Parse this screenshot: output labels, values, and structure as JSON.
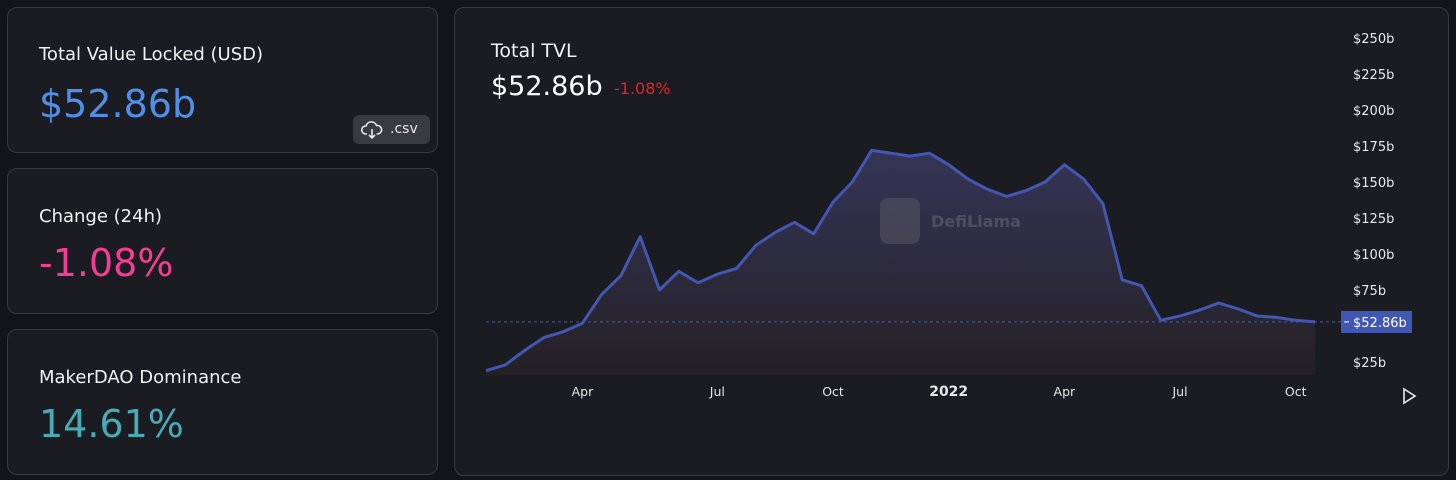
{
  "cards": [
    {
      "title": "Total Value Locked (USD)",
      "value": "$52.86b",
      "button": ".csv"
    },
    {
      "title": "Change (24h)",
      "value": "-1.08%"
    },
    {
      "title": "MakerDAO Dominance",
      "value": "14.61%"
    }
  ],
  "chart_data": {
    "type": "line",
    "title": "Total TVL",
    "headline_value": "$52.86b",
    "headline_change": "-1.08%",
    "watermark": "DefiLlama",
    "categories": [
      null,
      null,
      null,
      null,
      null,
      "Apr",
      null,
      null,
      null,
      null,
      null,
      null,
      "Jul",
      null,
      null,
      null,
      null,
      null,
      "Oct",
      null,
      null,
      null,
      null,
      null,
      "2022",
      null,
      null,
      null,
      null,
      null,
      "Apr",
      null,
      null,
      null,
      null,
      null,
      "Jul",
      null,
      null,
      null,
      null,
      null,
      "Oct",
      null
    ],
    "values": [
      19,
      23,
      33,
      42,
      46,
      52,
      72,
      85,
      112,
      75,
      88,
      80,
      86,
      90,
      106,
      115,
      122,
      114,
      136,
      150,
      172,
      170,
      168,
      170,
      162,
      152,
      145,
      140,
      144,
      150,
      162,
      152,
      135,
      82,
      78,
      54,
      57,
      61,
      66,
      62,
      57,
      56,
      54,
      52.86
    ],
    "color": "#4257b2",
    "ylim": [
      16,
      250
    ],
    "yticks": [
      {
        "value": 25,
        "label": "$25b"
      },
      {
        "value": 75,
        "label": "$75b"
      },
      {
        "value": 100,
        "label": "$100b"
      },
      {
        "value": 125,
        "label": "$125b"
      },
      {
        "value": 150,
        "label": "$150b"
      },
      {
        "value": 175,
        "label": "$175b"
      },
      {
        "value": 200,
        "label": "$200b"
      },
      {
        "value": 225,
        "label": "$225b"
      },
      {
        "value": 250,
        "label": "$250b"
      }
    ],
    "current_value": {
      "value": 52.86,
      "label": "$52.86b"
    }
  }
}
